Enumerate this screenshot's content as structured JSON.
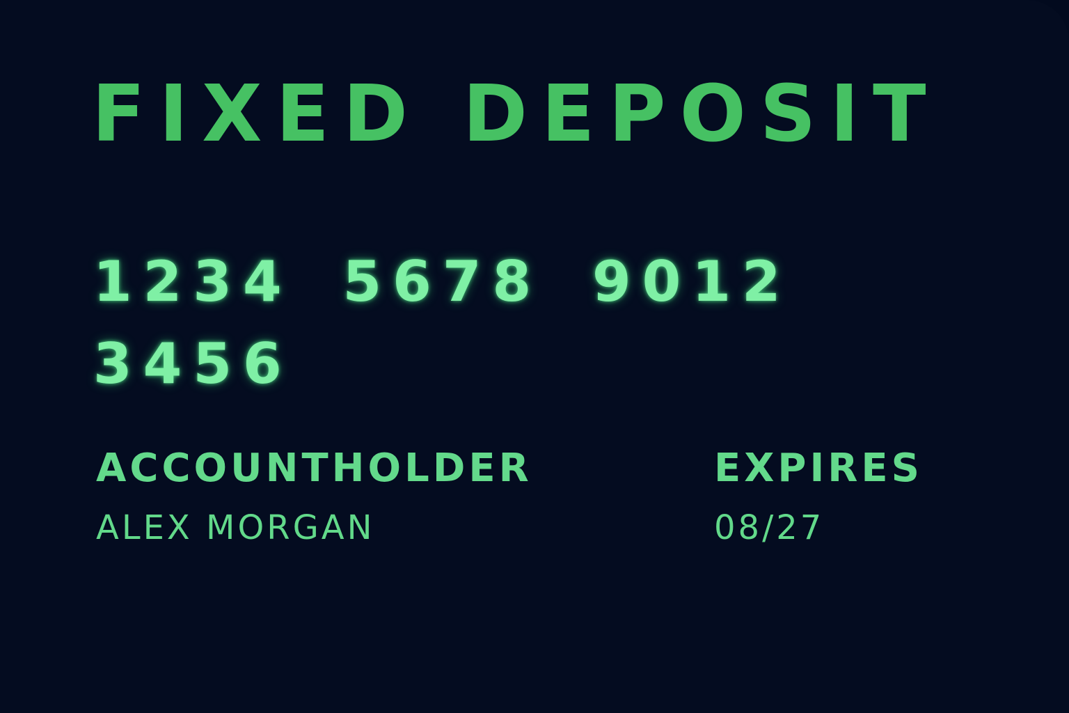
{
  "card": {
    "title": "FIXED DEPOSIT",
    "number": "1234 5678 9012 3456",
    "holder_label": "ACCOUNTHOLDER",
    "holder_name": "ALEX MORGAN",
    "expires_label": "EXPIRES",
    "expires_value": "08/27"
  },
  "colors": {
    "background": "#040c20",
    "title": "#46c163",
    "number": "#7ff0a5",
    "labels": "#63d98b"
  }
}
